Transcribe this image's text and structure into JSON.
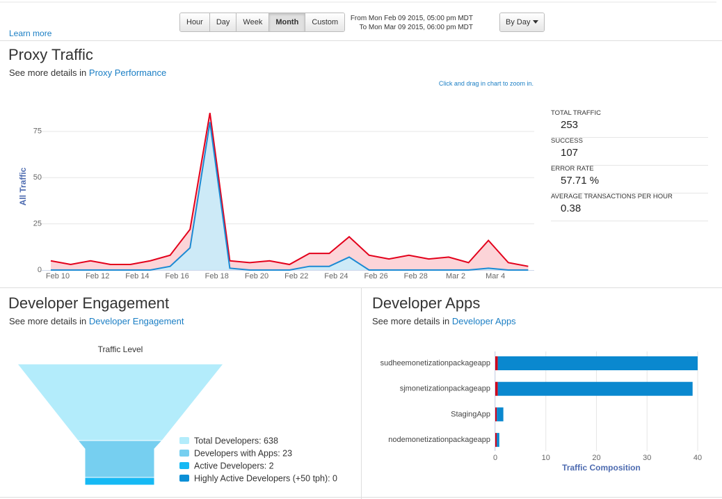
{
  "toolbar": {
    "learn_more": "Learn more",
    "buttons": [
      "Hour",
      "Day",
      "Week",
      "Month",
      "Custom"
    ],
    "selected": 3,
    "range_from": "From Mon Feb 09 2015, 05:00 pm MDT",
    "range_to": "To Mon Mar 09 2015, 06:00 pm MDT",
    "group_by": "By Day"
  },
  "proxy_traffic": {
    "title": "Proxy Traffic",
    "details_prefix": "See more details in",
    "details_link": "Proxy Performance",
    "zoom_hint": "Click and drag in chart to zoom in.",
    "stats": [
      {
        "label": "TOTAL TRAFFIC",
        "value": 253
      },
      {
        "label": "SUCCESS",
        "value": 107
      },
      {
        "label": "ERROR RATE",
        "value": 57.71,
        "unit": "%"
      },
      {
        "label": "AVERAGE TRANSACTIONS PER HOUR",
        "value": 0.38
      }
    ]
  },
  "developer_engagement": {
    "title": "Developer Engagement",
    "details_prefix": "See more details in",
    "details_link": "Developer Engagement"
  },
  "developer_apps": {
    "title": "Developer Apps",
    "details_prefix": "See more details in",
    "details_link": "Developer Apps"
  },
  "chart_data": [
    {
      "type": "area",
      "y_label": "All Traffic",
      "categories": [
        "Feb 10",
        null,
        "Feb 12",
        null,
        "Feb 14",
        null,
        "Feb 16",
        null,
        "Feb 18",
        null,
        "Feb 20",
        null,
        "Feb 22",
        null,
        "Feb 24",
        null,
        "Feb 26",
        null,
        "Feb 28",
        null,
        "Mar 2",
        null,
        "Mar 4",
        null,
        null
      ],
      "series": [
        {
          "color": "#e3001b",
          "fill": "#fcd4d8",
          "values": [
            5,
            3,
            5,
            3,
            3,
            5,
            8,
            22,
            85,
            5,
            4,
            5,
            3,
            9,
            9,
            18,
            8,
            6,
            8,
            6,
            7,
            4,
            16,
            4,
            2
          ]
        },
        {
          "color": "#1b8ad3",
          "fill": "#cdeaf7",
          "values": [
            0,
            0,
            0,
            0,
            0,
            0,
            2,
            12,
            80,
            1,
            0,
            0,
            0,
            2,
            2,
            7,
            0,
            0,
            0,
            0,
            0,
            0,
            1,
            0,
            0
          ]
        }
      ],
      "ylim": [
        0,
        90
      ],
      "yticks": [
        0,
        25,
        50,
        75
      ],
      "grid": true
    },
    {
      "type": "funnel",
      "title": "Traffic Level",
      "categories": [
        "Total Developers: 638",
        "Developers with Apps: 23",
        "Active Developers: 2",
        "Highly Active Developers (+50 tph): 0"
      ],
      "values": [
        638,
        23,
        2,
        0
      ],
      "colors": [
        "#b3ecfb",
        "#76cff0",
        "#16b9f4",
        "#0b8fd6"
      ]
    },
    {
      "type": "hbar",
      "stacked": true,
      "x_label": "Traffic Composition",
      "categories": [
        "sudheemonetizationpackageapp",
        "sjmonetizationpackageapp",
        "StagingApp",
        "nodemonetizationpackageapp"
      ],
      "series": [
        {
          "color": "#d0021b",
          "values": [
            0.5,
            0.5,
            0.3,
            0.3
          ]
        },
        {
          "color": "#0a88cf",
          "values": [
            39.5,
            38.5,
            1.3,
            0.5
          ]
        }
      ],
      "xlim": [
        0,
        40
      ],
      "xticks": [
        0,
        10,
        20,
        30,
        40
      ],
      "grid": true
    }
  ]
}
